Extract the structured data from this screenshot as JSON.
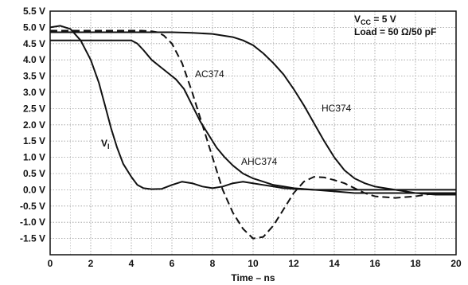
{
  "chart_data": {
    "type": "line",
    "xlabel": "Time – ns",
    "ylabel": "",
    "xlim": [
      0,
      20
    ],
    "ylim": [
      -2.0,
      5.5
    ],
    "xticks": [
      0,
      2,
      4,
      6,
      8,
      10,
      12,
      14,
      16,
      18,
      20
    ],
    "xtick_labels": [
      "0",
      "2",
      "4",
      "6",
      "8",
      "10",
      "12",
      "14",
      "16",
      "18",
      "20"
    ],
    "yticks": [
      5.5,
      5.0,
      4.5,
      4.0,
      3.5,
      3.0,
      2.5,
      2.0,
      1.5,
      1.0,
      0.5,
      0.0,
      -0.5,
      -1.0,
      -1.5
    ],
    "ytick_labels": [
      "5.5 V",
      "5.0 V",
      "4.5 V",
      "4.0 V",
      "3.5 V",
      "3.0 V",
      "2.5 V",
      "2.0 V",
      "1.5 V",
      "1.0 V",
      "0.5 V",
      "0.0 V",
      "-0.5 V",
      "-1.0 V",
      "-1.5 V"
    ],
    "grid": true,
    "annotation": {
      "vcc_main": "V",
      "vcc_sub": "CC",
      "vcc_value": " = 5 V",
      "load": "Load = 50 Ω/50 pF"
    },
    "series": [
      {
        "name": "VI",
        "label_main": "V",
        "label_sub": "I",
        "style": "solid",
        "x": [
          0,
          0.5,
          1.0,
          1.5,
          2.0,
          2.4,
          2.7,
          3.0,
          3.3,
          3.6,
          4.0,
          4.3,
          4.6,
          5.0,
          5.5,
          6.0,
          6.5,
          7.0,
          7.5,
          8.0,
          8.5,
          9.0,
          9.5,
          10.0,
          10.5,
          11.0,
          11.5,
          12.0,
          13.0,
          14.0,
          15.0,
          16.0,
          17.0,
          18.0,
          19.0,
          20.0
        ],
        "y": [
          5.0,
          5.05,
          4.95,
          4.6,
          4.0,
          3.3,
          2.6,
          1.9,
          1.3,
          0.8,
          0.4,
          0.15,
          0.05,
          0.02,
          0.03,
          0.15,
          0.25,
          0.2,
          0.1,
          0.05,
          0.1,
          0.2,
          0.25,
          0.2,
          0.15,
          0.1,
          0.05,
          0.03,
          0.0,
          0.0,
          0.0,
          0.0,
          0.0,
          0.0,
          0.0,
          0.0
        ]
      },
      {
        "name": "AC374",
        "label_main": "AC374",
        "style": "dashed",
        "x": [
          0,
          1,
          2,
          3,
          4,
          4.5,
          5.0,
          5.3,
          5.6,
          6.0,
          6.5,
          7.0,
          7.5,
          8.0,
          8.5,
          9.0,
          9.5,
          10.0,
          10.5,
          11.0,
          11.5,
          12.0,
          12.5,
          13.0,
          13.5,
          14.0,
          14.5,
          15.0,
          15.5,
          16.0,
          17.0,
          18.0,
          19.0,
          20.0
        ],
        "y": [
          4.9,
          4.9,
          4.9,
          4.9,
          4.9,
          4.9,
          4.88,
          4.85,
          4.75,
          4.5,
          3.9,
          3.0,
          2.0,
          1.0,
          0.0,
          -0.7,
          -1.2,
          -1.5,
          -1.45,
          -1.1,
          -0.6,
          -0.1,
          0.25,
          0.4,
          0.38,
          0.3,
          0.2,
          0.05,
          -0.1,
          -0.2,
          -0.25,
          -0.2,
          -0.1,
          -0.1
        ]
      },
      {
        "name": "AHC374",
        "label_main": "AHC374",
        "style": "solid",
        "x": [
          0,
          1,
          2,
          3,
          4,
          4.3,
          4.6,
          5.0,
          5.4,
          5.8,
          6.2,
          6.6,
          7.0,
          7.4,
          7.8,
          8.2,
          8.6,
          9.0,
          9.5,
          10.0,
          10.5,
          11.0,
          11.5,
          12.0,
          13.0,
          14.0,
          15.0,
          16.0,
          17.0,
          18.0,
          19.0,
          20.0
        ],
        "y": [
          4.6,
          4.6,
          4.6,
          4.6,
          4.6,
          4.5,
          4.3,
          4.0,
          3.8,
          3.6,
          3.4,
          3.1,
          2.6,
          2.1,
          1.7,
          1.3,
          1.0,
          0.75,
          0.5,
          0.35,
          0.25,
          0.15,
          0.1,
          0.05,
          0.0,
          -0.05,
          -0.1,
          -0.1,
          -0.1,
          -0.1,
          -0.1,
          -0.1
        ]
      },
      {
        "name": "HC374",
        "label_main": "HC374",
        "style": "solid",
        "x": [
          0,
          2,
          4,
          6,
          7,
          8,
          9,
          9.5,
          10.0,
          10.5,
          11.0,
          11.5,
          12.0,
          12.5,
          13.0,
          13.5,
          14.0,
          14.5,
          15.0,
          15.5,
          16.0,
          16.5,
          17.0,
          17.5,
          18.0,
          19.0,
          20.0
        ],
        "y": [
          4.85,
          4.85,
          4.85,
          4.85,
          4.83,
          4.8,
          4.7,
          4.6,
          4.45,
          4.2,
          3.9,
          3.55,
          3.1,
          2.6,
          2.05,
          1.5,
          1.0,
          0.6,
          0.35,
          0.2,
          0.1,
          0.05,
          0.0,
          -0.05,
          -0.1,
          -0.15,
          -0.15
        ]
      }
    ]
  }
}
